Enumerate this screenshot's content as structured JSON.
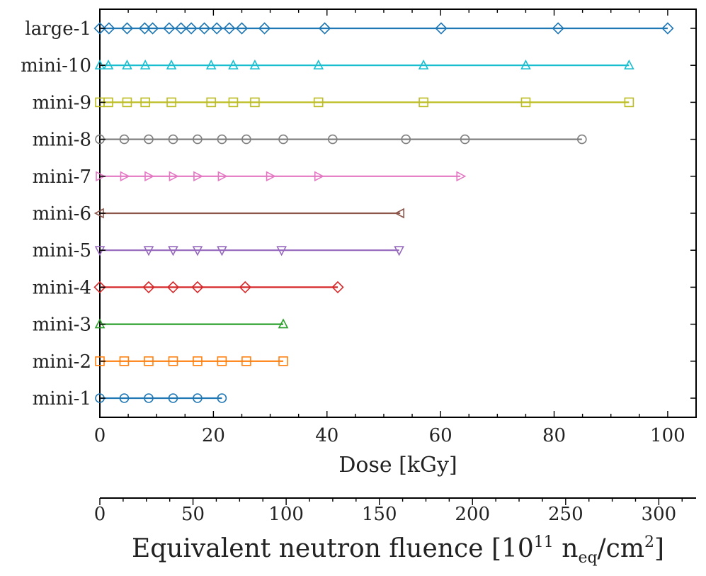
{
  "chart_data": {
    "type": "scatter",
    "xlabel": "Dose [kGy]",
    "xlim": [
      0,
      105
    ],
    "xticks": [
      0,
      20,
      40,
      60,
      80,
      100
    ],
    "secondary_axis": {
      "label_prefix": "Equivalent neutron fluence [10",
      "label_exp": "11",
      "label_mid": " n",
      "label_sub": "eq",
      "label_unit": "/cm",
      "label_unit_exp": "2",
      "label_suffix": "]",
      "xlim": [
        0,
        320
      ],
      "xticks": [
        0,
        50,
        100,
        150,
        200,
        250,
        300
      ]
    },
    "series": [
      {
        "name": "mini-1",
        "color": "#1f77b4",
        "marker": "circle",
        "x": [
          0,
          4.3,
          8.6,
          12.9,
          17.2,
          21.5
        ]
      },
      {
        "name": "mini-2",
        "color": "#ff7f0e",
        "marker": "square",
        "x": [
          0,
          4.3,
          8.6,
          12.9,
          17.2,
          21.5,
          25.8,
          32.3
        ]
      },
      {
        "name": "mini-3",
        "color": "#2ca02c",
        "marker": "triangle-up",
        "x": [
          0,
          32.3
        ]
      },
      {
        "name": "mini-4",
        "color": "#d62728",
        "marker": "diamond",
        "x": [
          0,
          8.6,
          12.9,
          17.2,
          25.6,
          41.9
        ]
      },
      {
        "name": "mini-5",
        "color": "#9467bd",
        "marker": "triangle-down",
        "x": [
          0,
          8.6,
          12.9,
          17.2,
          21.5,
          32.0,
          52.7
        ]
      },
      {
        "name": "mini-6",
        "color": "#8c564b",
        "marker": "triangle-left",
        "x": [
          0,
          52.9
        ]
      },
      {
        "name": "mini-7",
        "color": "#e377c2",
        "marker": "triangle-right",
        "x": [
          0,
          4.3,
          8.6,
          12.9,
          17.2,
          21.5,
          30.0,
          38.5,
          63.5
        ]
      },
      {
        "name": "mini-8",
        "color": "#7f7f7f",
        "marker": "circle",
        "x": [
          0,
          4.3,
          8.6,
          12.9,
          17.2,
          21.5,
          25.8,
          32.3,
          41.0,
          53.9,
          64.3,
          84.9
        ]
      },
      {
        "name": "mini-9",
        "color": "#bcbd22",
        "marker": "square",
        "x": [
          0,
          1.5,
          4.8,
          8.0,
          12.6,
          19.6,
          23.5,
          27.3,
          38.5,
          57.0,
          75.0,
          93.2
        ]
      },
      {
        "name": "mini-10",
        "color": "#17becf",
        "marker": "triangle-up",
        "x": [
          0,
          1.5,
          4.8,
          8.0,
          12.6,
          19.6,
          23.5,
          27.3,
          38.5,
          57.0,
          75.0,
          93.2
        ]
      },
      {
        "name": "large-1",
        "color": "#1f77b4",
        "marker": "diamond",
        "x": [
          0,
          1.6,
          4.8,
          7.9,
          9.3,
          12.2,
          14.3,
          16.1,
          18.4,
          20.6,
          22.8,
          25.0,
          29.0,
          39.6,
          60.1,
          80.7,
          100.0
        ]
      }
    ]
  }
}
